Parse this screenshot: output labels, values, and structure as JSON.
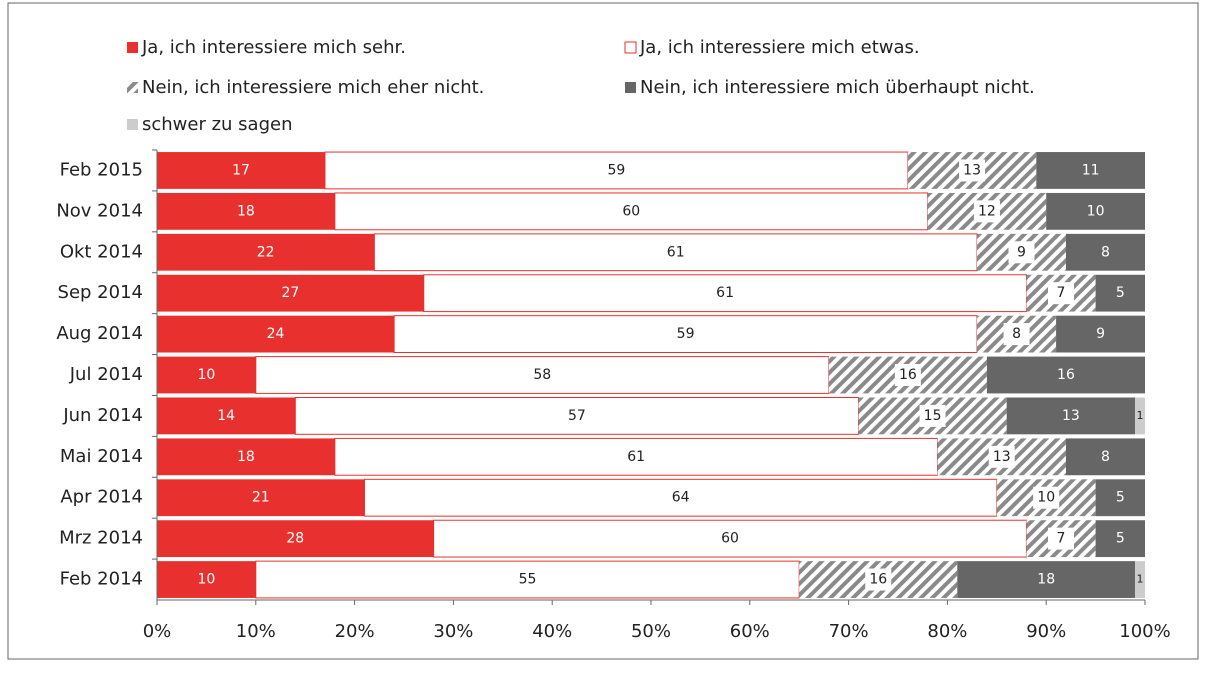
{
  "chart_data": {
    "type": "stacked-barh",
    "categories": [
      "Feb 2015",
      "Nov 2014",
      "Okt 2014",
      "Sep 2014",
      "Aug 2014",
      "Jul 2014",
      "Jun 2014",
      "Mai 2014",
      "Apr 2014",
      "Mrz 2014",
      "Feb 2014"
    ],
    "series": [
      {
        "name": "Ja, ich interessiere mich sehr.",
        "color": "#e8312f",
        "values": [
          17,
          18,
          22,
          27,
          24,
          10,
          14,
          18,
          21,
          28,
          10
        ]
      },
      {
        "name": "Ja, ich interessiere mich etwas.",
        "color": "#ffffff",
        "values": [
          59,
          60,
          61,
          61,
          59,
          58,
          57,
          61,
          64,
          60,
          55
        ]
      },
      {
        "name": "Nein, ich interessiere mich eher nicht.",
        "color": "#8a8a8a",
        "values": [
          13,
          12,
          9,
          7,
          8,
          16,
          15,
          13,
          10,
          7,
          16
        ]
      },
      {
        "name": "Nein, ich interessiere mich überhaupt nicht.",
        "color": "#666666",
        "values": [
          11,
          10,
          8,
          5,
          9,
          16,
          13,
          8,
          5,
          5,
          18
        ]
      },
      {
        "name": "schwer zu sagen",
        "color": "#cccccc",
        "values": [
          null,
          null,
          null,
          null,
          null,
          null,
          1,
          null,
          null,
          null,
          1
        ]
      }
    ],
    "xlim": [
      0,
      100
    ],
    "xticks": [
      {
        "value": 0,
        "label": "0%"
      },
      {
        "value": 10,
        "label": "10%"
      },
      {
        "value": 20,
        "label": "20%"
      },
      {
        "value": 30,
        "label": "30%"
      },
      {
        "value": 40,
        "label": "40%"
      },
      {
        "value": 50,
        "label": "50%"
      },
      {
        "value": 60,
        "label": "60%"
      },
      {
        "value": 70,
        "label": "70%"
      },
      {
        "value": 80,
        "label": "80%"
      },
      {
        "value": 90,
        "label": "90%"
      },
      {
        "value": 100,
        "label": "100%"
      }
    ]
  }
}
